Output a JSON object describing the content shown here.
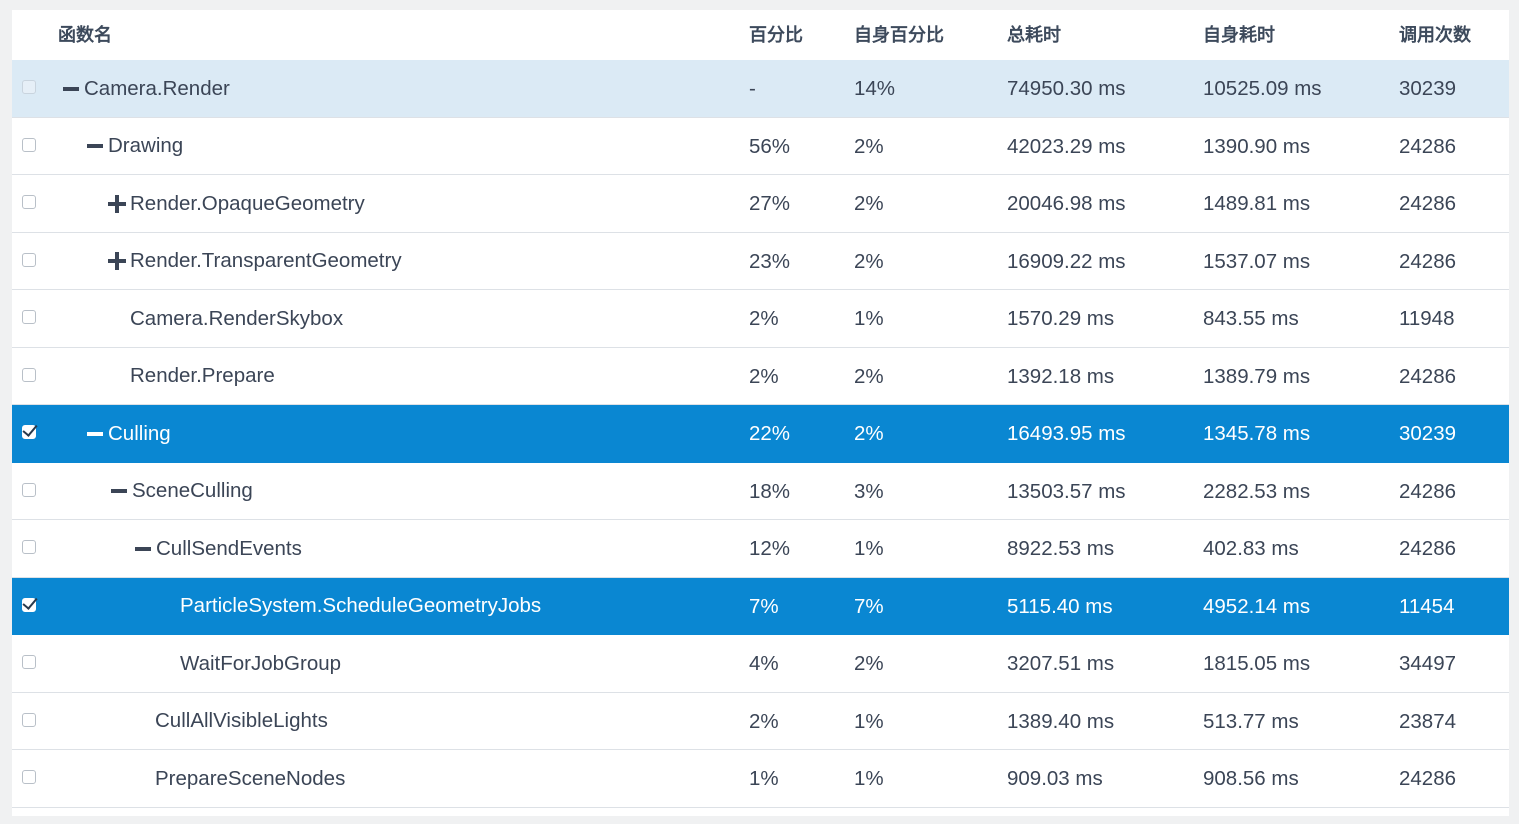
{
  "headers": {
    "name": "函数名",
    "percent": "百分比",
    "self_percent": "自身百分比",
    "total_time": "总耗时",
    "self_time": "自身耗时",
    "calls": "调用次数"
  },
  "rows": [
    {
      "name": "Camera.Render",
      "percent": "-",
      "self_percent": "14%",
      "total_time": "74950.30 ms",
      "self_time": "10525.09 ms",
      "calls": "30239",
      "toggle": "minus",
      "checked": false
    },
    {
      "name": "Drawing",
      "percent": "56%",
      "self_percent": "2%",
      "total_time": "42023.29 ms",
      "self_time": "1390.90 ms",
      "calls": "24286",
      "toggle": "minus",
      "checked": false
    },
    {
      "name": "Render.OpaqueGeometry",
      "percent": "27%",
      "self_percent": "2%",
      "total_time": "20046.98 ms",
      "self_time": "1489.81 ms",
      "calls": "24286",
      "toggle": "plus",
      "checked": false
    },
    {
      "name": "Render.TransparentGeometry",
      "percent": "23%",
      "self_percent": "2%",
      "total_time": "16909.22 ms",
      "self_time": "1537.07 ms",
      "calls": "24286",
      "toggle": "plus",
      "checked": false
    },
    {
      "name": "Camera.RenderSkybox",
      "percent": "2%",
      "self_percent": "1%",
      "total_time": "1570.29 ms",
      "self_time": "843.55 ms",
      "calls": "11948",
      "toggle": "none",
      "checked": false
    },
    {
      "name": "Render.Prepare",
      "percent": "2%",
      "self_percent": "2%",
      "total_time": "1392.18 ms",
      "self_time": "1389.79 ms",
      "calls": "24286",
      "toggle": "none",
      "checked": false
    },
    {
      "name": "Culling",
      "percent": "22%",
      "self_percent": "2%",
      "total_time": "16493.95 ms",
      "self_time": "1345.78 ms",
      "calls": "30239",
      "toggle": "minus",
      "checked": true
    },
    {
      "name": "SceneCulling",
      "percent": "18%",
      "self_percent": "3%",
      "total_time": "13503.57 ms",
      "self_time": "2282.53 ms",
      "calls": "24286",
      "toggle": "minus",
      "checked": false
    },
    {
      "name": "CullSendEvents",
      "percent": "12%",
      "self_percent": "1%",
      "total_time": "8922.53 ms",
      "self_time": "402.83 ms",
      "calls": "24286",
      "toggle": "minus",
      "checked": false
    },
    {
      "name": "ParticleSystem.ScheduleGeometryJobs",
      "percent": "7%",
      "self_percent": "7%",
      "total_time": "5115.40 ms",
      "self_time": "4952.14 ms",
      "calls": "11454",
      "toggle": "none",
      "checked": true
    },
    {
      "name": "WaitForJobGroup",
      "percent": "4%",
      "self_percent": "2%",
      "total_time": "3207.51 ms",
      "self_time": "1815.05 ms",
      "calls": "34497",
      "toggle": "none",
      "checked": false
    },
    {
      "name": "CullAllVisibleLights",
      "percent": "2%",
      "self_percent": "1%",
      "total_time": "1389.40 ms",
      "self_time": "513.77 ms",
      "calls": "23874",
      "toggle": "none",
      "checked": false
    },
    {
      "name": "PrepareSceneNodes",
      "percent": "1%",
      "self_percent": "1%",
      "total_time": "909.03 ms",
      "self_time": "908.56 ms",
      "calls": "24286",
      "toggle": "none",
      "checked": false
    }
  ]
}
